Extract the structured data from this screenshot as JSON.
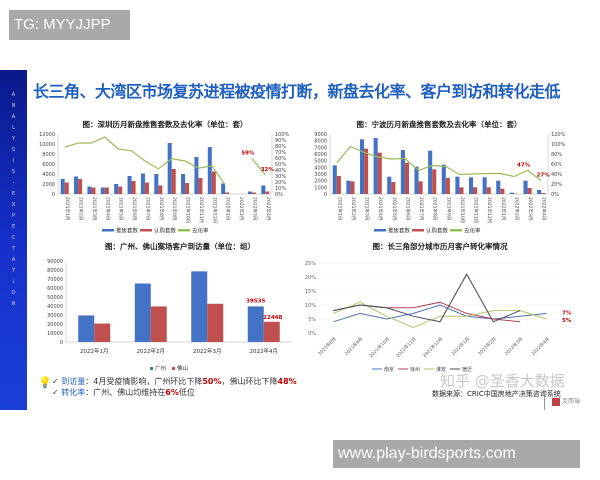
{
  "watermarks": {
    "top_left": "TG: MYYJJPP",
    "bottom_right": "www.play-birdsports.com",
    "zhihu": "知乎 @圣香大数据"
  },
  "slide": {
    "sidebar_text": "ANALYSIS EXPECTATION",
    "title": "长三角、大湾区市场复苏进程被疫情打断，新盘去化率、客户到访和转化走低",
    "notes": [
      {
        "label": "到访量",
        "text": "：4月受疫情影响，广州环比下降",
        "v1": "50%",
        "mid": "，佛山环比下降",
        "v2": "48%"
      },
      {
        "label": "转化率",
        "text": "：广州、佛山均维持在",
        "v1": "6%",
        "mid": "低位",
        "v2": ""
      }
    ],
    "source": "数据来源：CRIC中国房地产决策咨询系统",
    "logo": "克而瑞"
  },
  "colors": {
    "blue": "#4472c4",
    "red": "#c0504d",
    "olive": "#9bbb59",
    "title": "#1f5fbf",
    "highlight": "#c00000"
  },
  "chart_data": [
    {
      "id": "shenzhen",
      "type": "bar",
      "title": "图：深圳历月新盘推售套数及去化率（单位：套）",
      "categories": [
        "2021年1月",
        "2021年2月",
        "2021年3月",
        "2021年4月",
        "2021年5月",
        "2021年6月",
        "2021年7月",
        "2021年8月",
        "2021年9月",
        "2021年10月",
        "2021年11月",
        "2021年12月",
        "2022年1月",
        "2022年2月",
        "2022年3月",
        "2022年4月"
      ],
      "series": [
        {
          "name": "推售套数",
          "axis": "left",
          "values": [
            3000,
            3500,
            1500,
            1300,
            2000,
            3600,
            4100,
            4000,
            10200,
            4000,
            7400,
            9400,
            2100,
            0,
            500,
            1700
          ]
        },
        {
          "name": "认购套数",
          "axis": "left",
          "values": [
            2300,
            3000,
            1300,
            1300,
            1500,
            2600,
            2300,
            1700,
            5000,
            2200,
            3200,
            4500,
            300,
            0,
            300,
            500
          ]
        },
        {
          "name": "去化率",
          "axis": "right",
          "type": "line",
          "values": [
            78,
            85,
            85,
            95,
            75,
            72,
            55,
            42,
            59,
            55,
            43,
            47,
            15,
            null,
            59,
            32
          ]
        }
      ],
      "annotations": [
        "59%",
        "32%"
      ],
      "ylim": [
        0,
        12000
      ],
      "yticks": [
        0,
        2000,
        4000,
        6000,
        8000,
        10000,
        12000
      ],
      "y2lim": [
        0,
        100
      ],
      "y2ticks": [
        "0%",
        "10%",
        "20%",
        "30%",
        "40%",
        "50%",
        "60%",
        "70%",
        "80%",
        "90%",
        "100%"
      ],
      "legend_position": "bottom"
    },
    {
      "id": "ningbo",
      "type": "bar",
      "title": "图：宁波历月新盘推售套数及去化率（单位：套）",
      "categories": [
        "2021年1月",
        "2021年2月",
        "2021年3月",
        "2021年4月",
        "2021年5月",
        "2021年6月",
        "2021年7月",
        "2021年8月",
        "2021年9月",
        "2021年10月",
        "2021年11月",
        "2021年12月",
        "2022年1月",
        "2022年2月",
        "2022年3月",
        "2022年4月"
      ],
      "series": [
        {
          "name": "推售套数",
          "axis": "left",
          "values": [
            4300,
            2000,
            8200,
            8400,
            2600,
            6600,
            4100,
            6500,
            4400,
            2600,
            2500,
            2500,
            2000,
            200,
            2000,
            600
          ]
        },
        {
          "name": "认购套数",
          "axis": "left",
          "values": [
            2700,
            1900,
            6800,
            6200,
            1800,
            4700,
            1900,
            3700,
            2400,
            1000,
            1000,
            1000,
            800,
            50,
            900,
            150
          ]
        },
        {
          "name": "去化率",
          "axis": "right",
          "type": "line",
          "values": [
            62,
            95,
            83,
            74,
            70,
            71,
            47,
            57,
            55,
            39,
            40,
            41,
            41,
            35,
            47,
            27
          ]
        }
      ],
      "annotations": [
        "47%",
        "27%"
      ],
      "ylim": [
        0,
        9000
      ],
      "yticks": [
        0,
        1000,
        2000,
        3000,
        4000,
        5000,
        6000,
        7000,
        8000,
        9000
      ],
      "y2lim": [
        0,
        120
      ],
      "y2ticks": [
        "0%",
        "20%",
        "40%",
        "60%",
        "80%",
        "100%",
        "120%"
      ],
      "legend_position": "bottom"
    },
    {
      "id": "gz_fs_visits",
      "type": "bar",
      "title": "图：广州、佛山案场客户到访量（单位：组）",
      "categories": [
        "2022年1月",
        "2022年2月",
        "2022年3月",
        "2022年4月"
      ],
      "series": [
        {
          "name": "广州",
          "values": [
            29500,
            65000,
            78500,
            39535
          ]
        },
        {
          "name": "佛山",
          "values": [
            20500,
            39500,
            42500,
            22448
          ]
        }
      ],
      "annotations": [
        "39535",
        "22448"
      ],
      "ylim": [
        0,
        90000
      ],
      "yticks": [
        0,
        10000,
        20000,
        30000,
        40000,
        50000,
        60000,
        70000,
        80000,
        90000
      ],
      "legend_position": "bottom"
    },
    {
      "id": "yrd_conversion",
      "type": "line",
      "title": "图：长三角部分城市历月客户转化率情况",
      "categories": [
        "2021年8月",
        "2021年9月",
        "2021年10月",
        "2021年11月",
        "2021年12月",
        "2022年1月",
        "2022年2月",
        "2022年3月",
        "2022年4月"
      ],
      "series": [
        {
          "name": "南京",
          "values": [
            4,
            7,
            5,
            7,
            10,
            6,
            5,
            6,
            7
          ]
        },
        {
          "name": "徐州",
          "values": [
            8,
            10,
            9,
            9,
            11,
            7,
            5,
            4,
            null
          ]
        },
        {
          "name": "淮安",
          "values": [
            7,
            11,
            6,
            2,
            6,
            6,
            8,
            8,
            5
          ]
        },
        {
          "name": "宿迁",
          "values": [
            8,
            10,
            9,
            6,
            4,
            21,
            4,
            8,
            null
          ]
        }
      ],
      "annotations": [
        "7%",
        "5%"
      ],
      "ylim": [
        0,
        25
      ],
      "yticks": [
        "0%",
        "5%",
        "10%",
        "15%",
        "20%",
        "25%"
      ],
      "legend_position": "bottom"
    }
  ]
}
